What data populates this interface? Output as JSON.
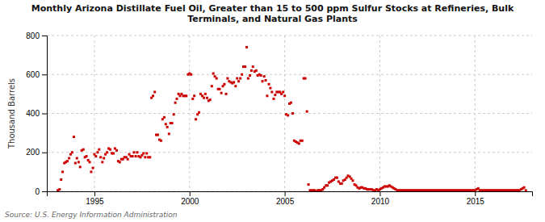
{
  "chart_data": {
    "type": "scatter",
    "title": "Monthly Arizona Distillate Fuel Oil, Greater than 15 to 500 ppm Sulfur Stocks at Refineries, Bulk\nTerminals, and Natural Gas Plants",
    "y_label": "Thousand Barrels",
    "source": "Source: U.S. Energy Information Administration",
    "color": "#cc0000",
    "marker": "square",
    "grid": true,
    "xlim": [
      1992.5,
      2018.0
    ],
    "xticks": [
      1995,
      2000,
      2005,
      2010,
      2015
    ],
    "ylim": [
      0,
      800
    ],
    "yticks": [
      0,
      200,
      400,
      600,
      800
    ],
    "x": [
      1993.08,
      1993.17,
      1993.25,
      1993.33,
      1993.42,
      1993.5,
      1993.58,
      1993.67,
      1993.75,
      1993.83,
      1993.92,
      1994.0,
      1994.08,
      1994.17,
      1994.25,
      1994.33,
      1994.42,
      1994.5,
      1994.58,
      1994.67,
      1994.75,
      1994.83,
      1994.92,
      1995.0,
      1995.08,
      1995.17,
      1995.25,
      1995.33,
      1995.42,
      1995.5,
      1995.58,
      1995.67,
      1995.75,
      1995.83,
      1995.92,
      1996.0,
      1996.08,
      1996.17,
      1996.25,
      1996.33,
      1996.42,
      1996.5,
      1996.58,
      1996.67,
      1996.75,
      1996.83,
      1996.92,
      1997.0,
      1997.08,
      1997.17,
      1997.25,
      1997.33,
      1997.42,
      1997.5,
      1997.58,
      1997.67,
      1997.75,
      1997.83,
      1997.92,
      1998.0,
      1998.08,
      1998.17,
      1998.25,
      1998.33,
      1998.42,
      1998.5,
      1998.58,
      1998.67,
      1998.75,
      1998.83,
      1998.92,
      1999.0,
      1999.08,
      1999.17,
      1999.25,
      1999.33,
      1999.42,
      1999.5,
      1999.58,
      1999.67,
      1999.75,
      1999.83,
      1999.92,
      2000.0,
      2000.08,
      2000.17,
      2000.25,
      2000.33,
      2000.42,
      2000.5,
      2000.58,
      2000.67,
      2000.75,
      2000.83,
      2000.92,
      2001.0,
      2001.08,
      2001.17,
      2001.25,
      2001.33,
      2001.42,
      2001.5,
      2001.58,
      2001.67,
      2001.75,
      2001.83,
      2001.92,
      2002.0,
      2002.08,
      2002.17,
      2002.25,
      2002.33,
      2002.42,
      2002.5,
      2002.58,
      2002.67,
      2002.75,
      2002.83,
      2002.92,
      2003.0,
      2003.08,
      2003.17,
      2003.25,
      2003.33,
      2003.42,
      2003.5,
      2003.58,
      2003.67,
      2003.75,
      2003.83,
      2003.92,
      2004.0,
      2004.08,
      2004.17,
      2004.25,
      2004.33,
      2004.42,
      2004.5,
      2004.58,
      2004.67,
      2004.75,
      2004.83,
      2004.92,
      2005.0,
      2005.08,
      2005.17,
      2005.25,
      2005.33,
      2005.42,
      2005.5,
      2005.58,
      2005.67,
      2005.75,
      2005.83,
      2005.92,
      2006.0,
      2006.08,
      2006.17,
      2006.25,
      2006.33,
      2006.42,
      2006.5,
      2006.58,
      2006.67,
      2006.75,
      2006.83,
      2006.92,
      2007.0,
      2007.08,
      2007.17,
      2007.25,
      2007.33,
      2007.42,
      2007.5,
      2007.58,
      2007.67,
      2007.75,
      2007.83,
      2007.92,
      2008.0,
      2008.08,
      2008.17,
      2008.25,
      2008.33,
      2008.42,
      2008.5,
      2008.58,
      2008.67,
      2008.75,
      2008.83,
      2008.92,
      2009.0,
      2009.08,
      2009.17,
      2009.25,
      2009.33,
      2009.42,
      2009.5,
      2009.58,
      2009.67,
      2009.75,
      2009.83,
      2009.92,
      2010.0,
      2010.08,
      2010.17,
      2010.25,
      2010.33,
      2010.42,
      2010.5,
      2010.58,
      2010.67,
      2010.75,
      2010.83,
      2010.92,
      2011.0,
      2011.08,
      2011.17,
      2011.25,
      2011.33,
      2011.42,
      2011.5,
      2011.58,
      2011.67,
      2011.75,
      2011.83,
      2011.92,
      2012.0,
      2012.08,
      2012.17,
      2012.25,
      2012.33,
      2012.42,
      2012.5,
      2012.58,
      2012.67,
      2012.75,
      2012.83,
      2012.92,
      2013.0,
      2013.08,
      2013.17,
      2013.25,
      2013.33,
      2013.42,
      2013.5,
      2013.58,
      2013.67,
      2013.75,
      2013.83,
      2013.92,
      2014.0,
      2014.08,
      2014.17,
      2014.25,
      2014.33,
      2014.42,
      2014.5,
      2014.58,
      2014.67,
      2014.75,
      2014.83,
      2014.92,
      2015.0,
      2015.08,
      2015.17,
      2015.25,
      2015.33,
      2015.42,
      2015.5,
      2015.58,
      2015.67,
      2015.75,
      2015.83,
      2015.92,
      2016.0,
      2016.08,
      2016.17,
      2016.25,
      2016.33,
      2016.42,
      2016.5,
      2016.58,
      2016.67,
      2016.75,
      2016.83,
      2016.92,
      2017.0,
      2017.08,
      2017.17,
      2017.25,
      2017.33,
      2017.42,
      2017.5,
      2017.58,
      2017.67
    ],
    "values": [
      5,
      10,
      60,
      100,
      145,
      150,
      155,
      170,
      190,
      200,
      280,
      145,
      170,
      150,
      125,
      210,
      215,
      175,
      180,
      160,
      150,
      100,
      120,
      190,
      180,
      200,
      215,
      175,
      150,
      170,
      190,
      200,
      220,
      215,
      195,
      195,
      220,
      210,
      155,
      150,
      165,
      165,
      175,
      175,
      165,
      190,
      180,
      180,
      200,
      180,
      200,
      180,
      175,
      185,
      195,
      175,
      195,
      175,
      175,
      480,
      490,
      510,
      290,
      290,
      265,
      260,
      370,
      380,
      345,
      330,
      295,
      350,
      350,
      395,
      455,
      475,
      500,
      490,
      500,
      490,
      490,
      490,
      600,
      605,
      600,
      475,
      490,
      370,
      395,
      405,
      500,
      490,
      480,
      500,
      480,
      465,
      470,
      540,
      605,
      590,
      580,
      525,
      525,
      505,
      540,
      550,
      500,
      580,
      565,
      560,
      555,
      560,
      540,
      580,
      565,
      580,
      600,
      640,
      640,
      740,
      580,
      595,
      620,
      640,
      615,
      620,
      595,
      600,
      595,
      565,
      590,
      570,
      490,
      550,
      530,
      510,
      475,
      495,
      510,
      510,
      510,
      500,
      510,
      490,
      395,
      390,
      450,
      455,
      400,
      260,
      255,
      250,
      245,
      260,
      260,
      580,
      580,
      410,
      35,
      5,
      5,
      5,
      5,
      0,
      5,
      5,
      5,
      10,
      20,
      30,
      30,
      45,
      50,
      55,
      60,
      70,
      70,
      50,
      40,
      40,
      55,
      60,
      70,
      80,
      75,
      65,
      55,
      35,
      30,
      20,
      15,
      20,
      20,
      15,
      15,
      10,
      10,
      10,
      10,
      5,
      5,
      10,
      5,
      10,
      15,
      20,
      25,
      25,
      25,
      30,
      25,
      20,
      15,
      10,
      5,
      5,
      5,
      5,
      5,
      5,
      5,
      5,
      5,
      5,
      5,
      5,
      5,
      5,
      5,
      5,
      5,
      5,
      5,
      5,
      5,
      5,
      5,
      5,
      5,
      5,
      5,
      5,
      5,
      5,
      5,
      5,
      5,
      5,
      5,
      5,
      5,
      5,
      5,
      5,
      5,
      5,
      5,
      5,
      5,
      5,
      5,
      5,
      5,
      5,
      10,
      15,
      5,
      5,
      5,
      5,
      5,
      5,
      5,
      5,
      5,
      5,
      5,
      5,
      5,
      5,
      5,
      5,
      5,
      5,
      5,
      5,
      5,
      5,
      5,
      5,
      5,
      5,
      10,
      15,
      20,
      5
    ]
  }
}
